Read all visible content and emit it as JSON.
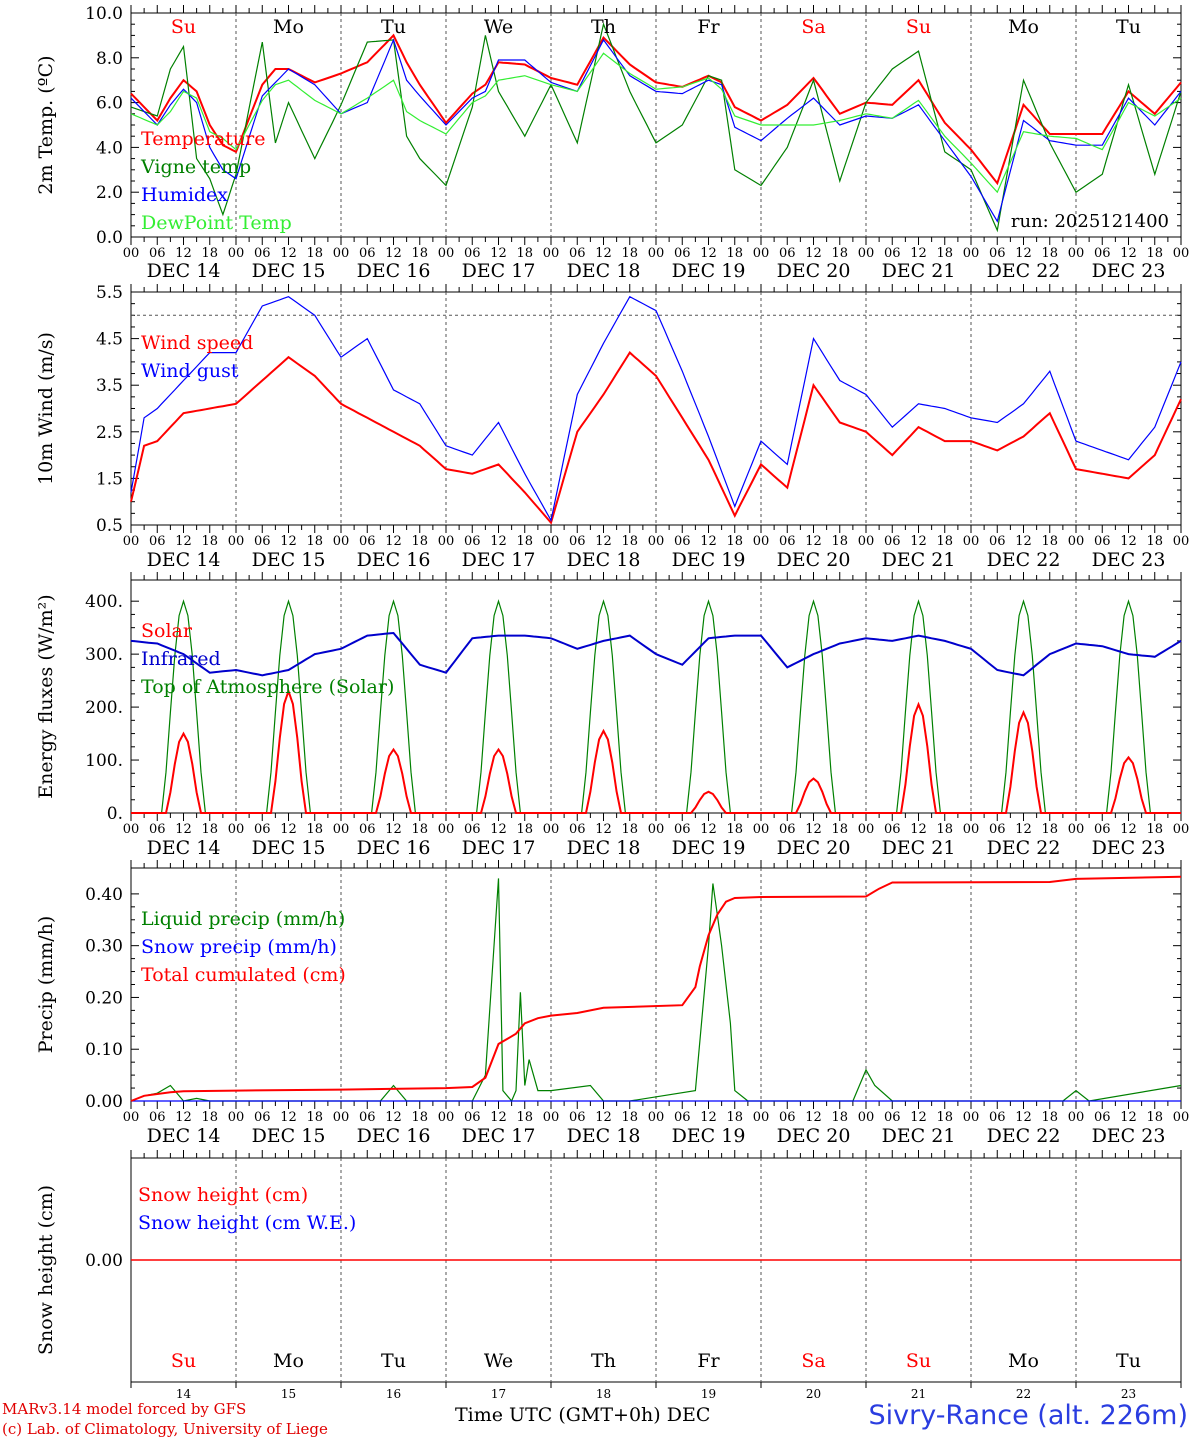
{
  "chart_data": [
    {
      "type": "line",
      "ylabel": "2m Temp. (ºC)",
      "ylim": [
        0,
        10
      ],
      "yticks": [
        "0.0",
        "2.0",
        "4.0",
        "6.0",
        "8.0",
        "10.0"
      ],
      "weekday_labels": [
        {
          "text": "Su",
          "color": "#ff0000"
        },
        {
          "text": "Mo",
          "color": "#000000"
        },
        {
          "text": "Tu",
          "color": "#000000"
        },
        {
          "text": "We",
          "color": "#000000"
        },
        {
          "text": "Th",
          "color": "#000000"
        },
        {
          "text": "Fr",
          "color": "#000000"
        },
        {
          "text": "Sa",
          "color": "#ff0000"
        },
        {
          "text": "Su",
          "color": "#ff0000"
        },
        {
          "text": "Mo",
          "color": "#000000"
        },
        {
          "text": "Tu",
          "color": "#000000"
        }
      ],
      "run_label": "run: 2025121400",
      "x_hours": [
        0,
        6,
        9,
        12,
        15,
        18,
        21,
        24,
        30,
        33,
        36,
        42,
        48,
        54,
        60,
        63,
        66,
        72,
        78,
        81,
        84,
        90,
        96,
        102,
        108,
        114,
        120,
        126,
        132,
        135,
        138,
        144,
        150,
        156,
        162,
        168,
        174,
        180,
        186,
        192,
        198,
        204,
        210,
        216,
        222,
        228,
        234,
        240
      ],
      "series": [
        {
          "name": "Temperature",
          "color": "#ff0000",
          "values": [
            6.4,
            5.2,
            6.2,
            7.0,
            6.5,
            5.0,
            4.1,
            3.8,
            6.8,
            7.5,
            7.5,
            6.9,
            7.3,
            7.8,
            9.0,
            7.8,
            6.8,
            5.1,
            6.4,
            6.8,
            7.8,
            7.7,
            7.1,
            6.8,
            8.9,
            7.7,
            6.9,
            6.7,
            7.2,
            6.9,
            5.8,
            5.2,
            5.9,
            7.1,
            5.5,
            6.0,
            5.9,
            7.0,
            5.1,
            3.9,
            2.4,
            5.9,
            4.6,
            4.6,
            4.6,
            6.5,
            5.5,
            6.9
          ]
        },
        {
          "name": "Vigne temp",
          "color": "#008000",
          "values": [
            5.8,
            5.4,
            7.5,
            8.5,
            3.5,
            2.6,
            1.0,
            2.8,
            8.7,
            4.2,
            6.0,
            3.5,
            5.9,
            8.7,
            8.8,
            4.5,
            3.5,
            2.3,
            5.8,
            9.0,
            6.5,
            4.5,
            6.8,
            4.2,
            9.5,
            6.5,
            4.2,
            5.0,
            7.2,
            7.0,
            3.0,
            2.3,
            4.0,
            7.0,
            2.5,
            6.0,
            7.5,
            8.3,
            3.8,
            3.0,
            0.3,
            7.0,
            4.2,
            2.0,
            2.8,
            6.8,
            2.8,
            6.5
          ]
        },
        {
          "name": "Humidex",
          "color": "#0000ff",
          "values": [
            6.2,
            5.0,
            5.9,
            6.6,
            6.0,
            4.0,
            3.0,
            2.6,
            6.3,
            6.9,
            7.5,
            6.8,
            5.5,
            6.0,
            8.8,
            7.0,
            6.3,
            5.0,
            6.2,
            6.5,
            7.9,
            7.9,
            6.9,
            6.5,
            8.8,
            7.2,
            6.5,
            6.4,
            7.0,
            6.8,
            4.9,
            4.3,
            5.3,
            6.2,
            5.0,
            5.4,
            5.3,
            5.9,
            4.3,
            2.7,
            0.7,
            5.2,
            4.3,
            4.1,
            4.1,
            6.2,
            5.0,
            6.5
          ]
        },
        {
          "name": "DewPoint Temp",
          "color": "#33ee33",
          "values": [
            5.5,
            5.0,
            5.6,
            6.5,
            6.2,
            4.7,
            4.4,
            3.9,
            6.1,
            6.8,
            7.0,
            6.1,
            5.5,
            6.2,
            7.0,
            5.6,
            5.2,
            4.6,
            6.0,
            6.3,
            7.0,
            7.2,
            6.8,
            6.5,
            8.2,
            7.3,
            6.6,
            6.7,
            7.1,
            6.6,
            5.4,
            5.0,
            5.0,
            5.0,
            5.2,
            5.5,
            5.3,
            6.1,
            4.5,
            3.3,
            2.0,
            4.7,
            4.5,
            4.4,
            3.9,
            6.0,
            5.4,
            6.2
          ]
        }
      ]
    },
    {
      "type": "line",
      "ylabel": "10m Wind (m/s)",
      "ylim": [
        0.5,
        5.5
      ],
      "yticks": [
        "0.5",
        "1.5",
        "2.5",
        "3.5",
        "4.5",
        "5.5"
      ],
      "reference_line": 5.0,
      "x_hours": [
        0,
        3,
        6,
        12,
        18,
        24,
        30,
        36,
        42,
        48,
        54,
        60,
        66,
        72,
        78,
        84,
        90,
        96,
        102,
        108,
        114,
        120,
        126,
        132,
        138,
        144,
        150,
        156,
        162,
        168,
        174,
        180,
        186,
        192,
        198,
        204,
        210,
        216,
        222,
        228,
        234,
        240
      ],
      "series": [
        {
          "name": "Wind speed",
          "color": "#ff0000",
          "values": [
            1.0,
            2.2,
            2.3,
            2.9,
            3.0,
            3.1,
            3.6,
            4.1,
            3.7,
            3.1,
            2.8,
            2.5,
            2.2,
            1.7,
            1.6,
            1.8,
            1.2,
            0.55,
            2.5,
            3.3,
            4.2,
            3.7,
            2.8,
            1.9,
            0.7,
            1.8,
            1.3,
            3.5,
            2.7,
            2.5,
            2.0,
            2.6,
            2.3,
            2.3,
            2.1,
            2.4,
            2.9,
            1.7,
            1.6,
            1.5,
            2.0,
            3.2
          ]
        },
        {
          "name": "Wind gust",
          "color": "#0000ff",
          "values": [
            1.2,
            2.8,
            3.0,
            3.6,
            4.2,
            4.2,
            5.2,
            5.4,
            5.0,
            4.1,
            4.5,
            3.4,
            3.1,
            2.2,
            2.0,
            2.7,
            1.6,
            0.6,
            3.3,
            4.4,
            5.4,
            5.1,
            3.8,
            2.4,
            0.9,
            2.3,
            1.8,
            4.5,
            3.6,
            3.3,
            2.6,
            3.1,
            3.0,
            2.8,
            2.7,
            3.1,
            3.8,
            2.3,
            2.1,
            1.9,
            2.6,
            4.0
          ]
        }
      ]
    },
    {
      "type": "line",
      "ylabel": "Energy fluxes (W/m²)",
      "ylim": [
        0,
        440
      ],
      "yticks": [
        "0.",
        "100.",
        "200.",
        "300.",
        "400."
      ],
      "series": [
        {
          "name": "Solar",
          "color": "#ff0000",
          "daily_peaks": [
            150,
            230,
            120,
            120,
            155,
            40,
            65,
            205,
            190,
            105
          ]
        },
        {
          "name": "Infrared",
          "color": "#0000cc",
          "x_hours": [
            0,
            6,
            12,
            18,
            24,
            30,
            36,
            42,
            48,
            54,
            60,
            66,
            72,
            78,
            84,
            90,
            96,
            102,
            108,
            114,
            120,
            126,
            132,
            138,
            144,
            150,
            156,
            162,
            168,
            174,
            180,
            186,
            192,
            198,
            204,
            210,
            216,
            222,
            228,
            234,
            240
          ],
          "values": [
            325,
            320,
            300,
            265,
            270,
            260,
            270,
            300,
            310,
            335,
            340,
            280,
            265,
            330,
            335,
            335,
            330,
            310,
            325,
            335,
            300,
            280,
            330,
            335,
            335,
            275,
            300,
            320,
            330,
            325,
            335,
            325,
            310,
            270,
            260,
            300,
            320,
            315,
            300,
            295,
            325
          ]
        },
        {
          "name": "Top of Atmosphere (Solar)",
          "color": "#008000",
          "daily_peaks": [
            400,
            400,
            400,
            400,
            400,
            400,
            400,
            400,
            400,
            400
          ]
        }
      ]
    },
    {
      "type": "line",
      "ylabel": "Precip (mm/h)",
      "ylim": [
        0,
        0.45
      ],
      "yticks": [
        "0.00",
        "0.10",
        "0.20",
        "0.30",
        "0.40"
      ],
      "series": [
        {
          "name": "Liquid precip (mm/h)",
          "color": "#008000",
          "x_hours": [
            0,
            3,
            6,
            9,
            12,
            15,
            18,
            36,
            57,
            60,
            63,
            78,
            81,
            84,
            85,
            87,
            88,
            89,
            90,
            91,
            93,
            96,
            105,
            108,
            111,
            114,
            129,
            132,
            133,
            134,
            135,
            137,
            138,
            141,
            165,
            168,
            170,
            174,
            186,
            213,
            216,
            219,
            240
          ],
          "values": [
            0,
            0.01,
            0.015,
            0.03,
            0.0,
            0.005,
            0,
            0,
            0.0,
            0.03,
            0.0,
            0.0,
            0.05,
            0.43,
            0.02,
            0.0,
            0.02,
            0.21,
            0.03,
            0.08,
            0.02,
            0.02,
            0.03,
            0.0,
            0.0,
            0.0,
            0.02,
            0.3,
            0.42,
            0.36,
            0.3,
            0.15,
            0.02,
            0.0,
            0.0,
            0.06,
            0.03,
            0.0,
            0.0,
            0.0,
            0.02,
            0.0,
            0.03
          ]
        },
        {
          "name": "Snow precip (mm/h)",
          "color": "#0000ff",
          "x_hours": [
            0,
            240
          ],
          "values": [
            0,
            0
          ]
        },
        {
          "name": "Total cumulated (cm)",
          "color": "#ff0000",
          "x_hours": [
            0,
            3,
            9,
            12,
            24,
            48,
            72,
            78,
            81,
            84,
            86,
            88,
            90,
            93,
            96,
            102,
            108,
            126,
            129,
            130,
            132,
            134,
            136,
            138,
            144,
            168,
            171,
            174,
            210,
            216,
            240
          ],
          "values": [
            0,
            0.01,
            0.017,
            0.019,
            0.02,
            0.022,
            0.025,
            0.027,
            0.045,
            0.11,
            0.12,
            0.13,
            0.15,
            0.16,
            0.165,
            0.17,
            0.18,
            0.185,
            0.22,
            0.26,
            0.32,
            0.36,
            0.385,
            0.392,
            0.394,
            0.395,
            0.41,
            0.422,
            0.423,
            0.429,
            0.433
          ]
        }
      ]
    },
    {
      "type": "line",
      "ylabel": "Snow height (cm)",
      "yticks": [
        "0.00"
      ],
      "series": [
        {
          "name": "Snow height (cm)",
          "color": "#ff0000",
          "x_hours": [
            0,
            240
          ],
          "values": [
            0,
            0
          ]
        },
        {
          "name": "Snow height (cm W.E.)",
          "color": "#0000ff",
          "x_hours": [
            0,
            240
          ],
          "values": [
            0,
            0
          ]
        }
      ]
    }
  ],
  "x_axis": {
    "hour_labels": [
      "00",
      "06",
      "12",
      "18"
    ],
    "final_hour_label": "00",
    "date_labels": [
      "DEC 14",
      "DEC 15",
      "DEC 16",
      "DEC 17",
      "DEC 18",
      "DEC 19",
      "DEC 20",
      "DEC 21",
      "DEC 22",
      "DEC 23"
    ],
    "bottom_weekdays": [
      {
        "text": "Su",
        "color": "#ff0000"
      },
      {
        "text": "Mo",
        "color": "#000000"
      },
      {
        "text": "Tu",
        "color": "#000000"
      },
      {
        "text": "We",
        "color": "#000000"
      },
      {
        "text": "Th",
        "color": "#000000"
      },
      {
        "text": "Fr",
        "color": "#000000"
      },
      {
        "text": "Sa",
        "color": "#ff0000"
      },
      {
        "text": "Su",
        "color": "#ff0000"
      },
      {
        "text": "Mo",
        "color": "#000000"
      },
      {
        "text": "Tu",
        "color": "#000000"
      }
    ],
    "bottom_day_numbers": [
      "14",
      "15",
      "16",
      "17",
      "18",
      "19",
      "20",
      "21",
      "22",
      "23"
    ]
  },
  "footer": {
    "model_line": "MARv3.14 model forced by GFS",
    "lab_line": "(c) Lab. of Climatology, University of Liege",
    "xlabel": "Time UTC (GMT+0h) DEC",
    "station": "Sivry-Rance (alt. 226m)"
  }
}
